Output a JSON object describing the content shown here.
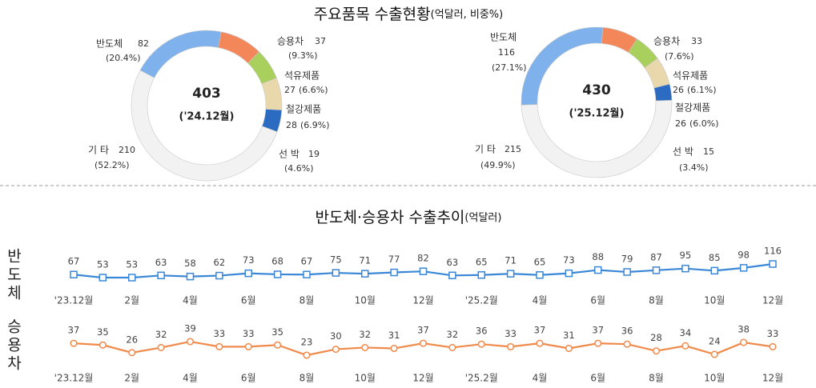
{
  "sections": [
    {
      "title": "주요품목 수출현황",
      "unit": "(억달러, 비중%)"
    },
    {
      "title": "반도체·승용차 수출추이",
      "unit": "(억달러)"
    }
  ],
  "chart_data": [
    {
      "type": "donut",
      "total": "403",
      "period": "('24.12월)",
      "categories": [
        "반도체",
        "승용차",
        "석유제품",
        "철강제품",
        "선 박",
        "기 타"
      ],
      "values": [
        82,
        37,
        27,
        28,
        19,
        210
      ],
      "shares": [
        20.4,
        9.3,
        6.6,
        6.9,
        4.6,
        52.2
      ],
      "share_labels": [
        "(20.4%)",
        "(9.3%)",
        "(6.6%)",
        "(6.9%)",
        "(4.6%)",
        "(52.2%)"
      ],
      "colors": [
        "#7fb2ec",
        "#f4875a",
        "#a9cf5c",
        "#ead8ad",
        "#2b6cc2",
        "#f2f2f2"
      ]
    },
    {
      "type": "donut",
      "total": "430",
      "period": "('25.12월)",
      "categories": [
        "반도체",
        "승용차",
        "석유제품",
        "철강제품",
        "선 박",
        "기 타"
      ],
      "values": [
        116,
        33,
        26,
        26,
        15,
        215
      ],
      "shares": [
        27.1,
        7.6,
        6.1,
        6.0,
        3.4,
        49.9
      ],
      "share_labels": [
        "(27.1%)",
        "(7.6%)",
        "(6.1%)",
        "(6.0%)",
        "(3.4%)",
        "(49.9%)"
      ],
      "colors": [
        "#7fb2ec",
        "#f4875a",
        "#a9cf5c",
        "#ead8ad",
        "#2b6cc2",
        "#f2f2f2"
      ]
    },
    {
      "type": "line",
      "marker": "square",
      "categories": [
        "'23.12월",
        null,
        "2월",
        null,
        "4월",
        null,
        "6월",
        null,
        "8월",
        null,
        "10월",
        null,
        "12월",
        null,
        "'25.2월",
        null,
        "4월",
        null,
        "6월",
        null,
        "8월",
        null,
        "10월",
        null,
        "12월"
      ],
      "series": [
        {
          "name": "반도체",
          "color": "#3a87d8",
          "values": [
            67,
            53,
            53,
            63,
            58,
            62,
            73,
            68,
            67,
            75,
            71,
            77,
            82,
            63,
            65,
            71,
            65,
            73,
            88,
            79,
            87,
            95,
            85,
            98,
            116
          ]
        }
      ]
    },
    {
      "type": "line",
      "marker": "circle",
      "categories": [
        "'23.12월",
        null,
        "2월",
        null,
        "4월",
        null,
        "6월",
        null,
        "8월",
        null,
        "10월",
        null,
        "12월",
        null,
        "'25.2월",
        null,
        "4월",
        null,
        "6월",
        null,
        "8월",
        null,
        "10월",
        null,
        "12월"
      ],
      "series": [
        {
          "name": "승용차",
          "color": "#f08a4b",
          "values": [
            37,
            35,
            26,
            32,
            39,
            33,
            33,
            35,
            23,
            30,
            32,
            31,
            37,
            32,
            36,
            33,
            37,
            31,
            37,
            36,
            28,
            34,
            24,
            38,
            33
          ]
        }
      ]
    }
  ]
}
